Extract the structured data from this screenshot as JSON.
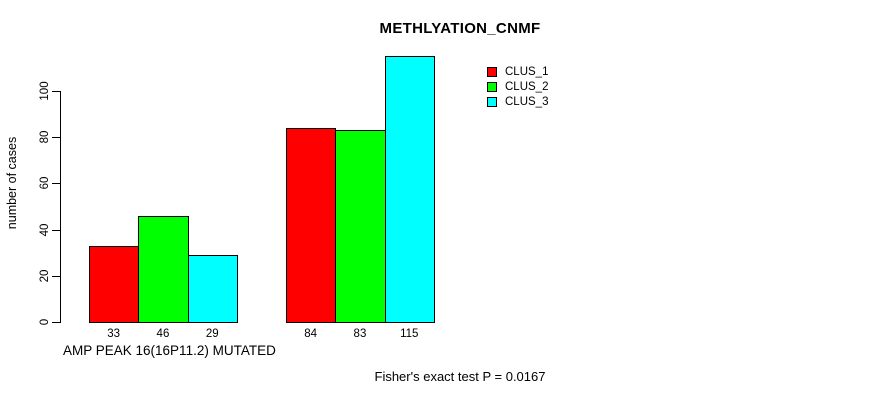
{
  "title": "METHLYATION_CNMF",
  "y_axis": {
    "label": "number of cases",
    "ticks": [
      0,
      20,
      40,
      60,
      80,
      100
    ]
  },
  "x_axis": {
    "label": "AMP PEAK 16(16P11.2) MUTATED"
  },
  "legend": {
    "items": [
      {
        "label": "CLUS_1",
        "color": "#ff0000"
      },
      {
        "label": "CLUS_2",
        "color": "#00ff00"
      },
      {
        "label": "CLUS_3",
        "color": "#00ffff"
      }
    ]
  },
  "footer": "Fisher's exact test P = 0.0167",
  "chart_data": {
    "type": "bar",
    "title": "METHLYATION_CNMF",
    "xlabel": "AMP PEAK 16(16P11.2) MUTATED",
    "ylabel": "number of cases",
    "categories": [
      "AMP PEAK 16(16P11.2) MUTATED",
      ""
    ],
    "series": [
      {
        "name": "CLUS_1",
        "color": "#ff0000",
        "values": [
          33,
          84
        ]
      },
      {
        "name": "CLUS_2",
        "color": "#00ff00",
        "values": [
          46,
          83
        ]
      },
      {
        "name": "CLUS_3",
        "color": "#00ffff",
        "values": [
          29,
          115
        ]
      }
    ],
    "bar_value_labels": [
      33,
      46,
      29,
      84,
      83,
      115
    ],
    "yticks": [
      0,
      20,
      40,
      60,
      80,
      100
    ],
    "ylim": [
      0,
      117
    ],
    "grid": false,
    "bar_border_color": "#000000",
    "legend_position": "inside-top-right",
    "legend_entries": [
      "CLUS_1",
      "CLUS_2",
      "CLUS_3"
    ],
    "annotation": "Fisher's exact test P = 0.0167"
  }
}
